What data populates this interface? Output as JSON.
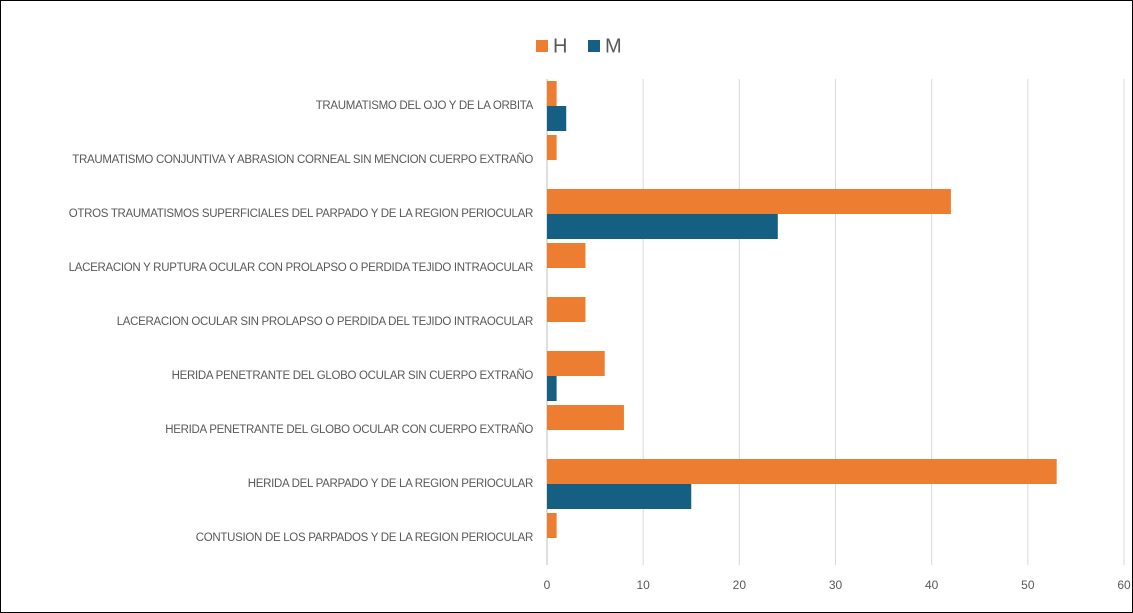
{
  "chart_data": {
    "type": "bar",
    "orientation": "horizontal",
    "categories": [
      "TRAUMATISMO DEL OJO Y DE LA ORBITA",
      "TRAUMATISMO CONJUNTIVA Y ABRASION CORNEAL SIN MENCION CUERPO EXTRAÑO",
      "OTROS TRAUMATISMOS SUPERFICIALES DEL PARPADO Y DE LA REGION PERIOCULAR",
      "LACERACION Y RUPTURA OCULAR CON PROLAPSO O PERDIDA TEJIDO INTRAOCULAR",
      "LACERACION OCULAR SIN PROLAPSO O PERDIDA DEL TEJIDO INTRAOCULAR",
      "HERIDA PENETRANTE DEL GLOBO OCULAR SIN CUERPO EXTRAÑO",
      "HERIDA PENETRANTE DEL GLOBO OCULAR CON CUERPO EXTRAÑO",
      "HERIDA DEL PARPADO Y DE LA REGION PERIOCULAR",
      "CONTUSION DE LOS PARPADOS Y DE LA REGION PERIOCULAR"
    ],
    "series": [
      {
        "name": "H",
        "color": "#ed7d31",
        "values": [
          1,
          1,
          42,
          4,
          4,
          6,
          8,
          53,
          1
        ]
      },
      {
        "name": "M",
        "color": "#156082",
        "values": [
          2,
          0,
          24,
          0,
          0,
          1,
          0,
          15,
          0
        ]
      }
    ],
    "xlim": [
      0,
      60
    ],
    "xticks": [
      0,
      10,
      20,
      30,
      40,
      50,
      60
    ],
    "grid": true,
    "legend": "top"
  }
}
